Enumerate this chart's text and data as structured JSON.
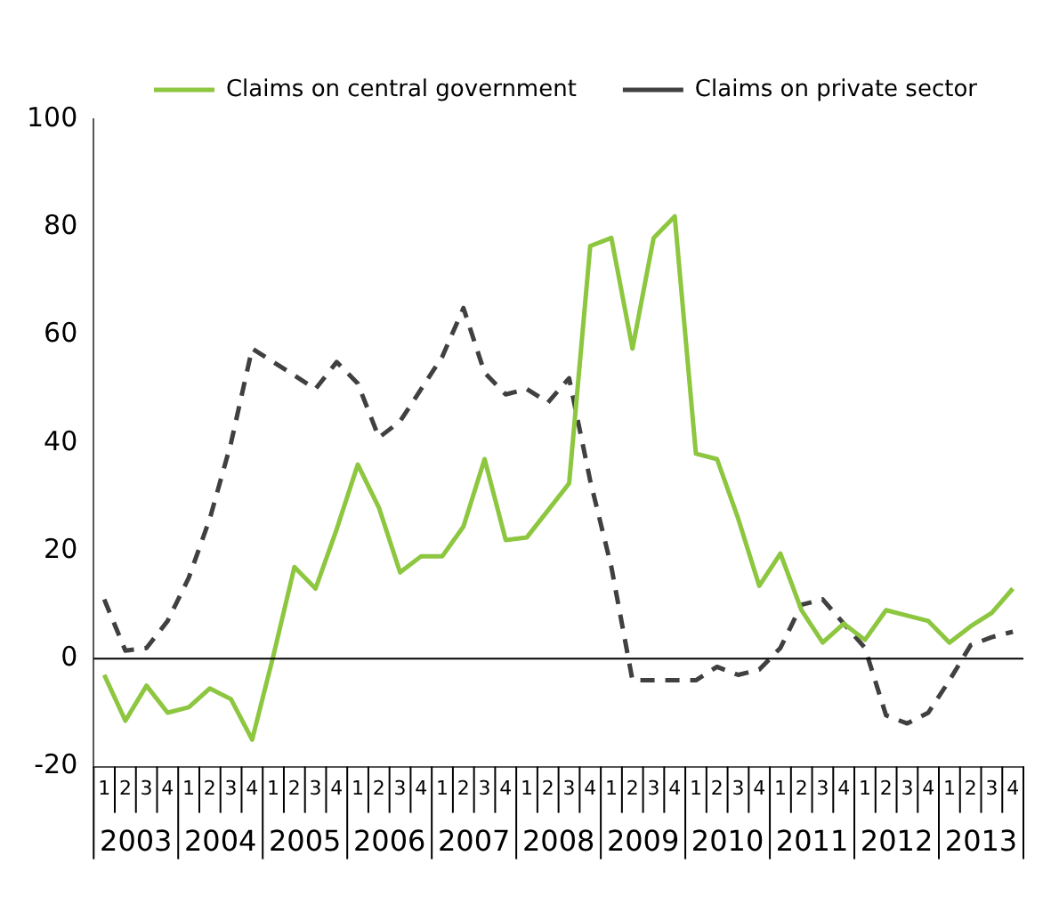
{
  "chart_data": {
    "type": "line",
    "categories": [
      "1",
      "2",
      "3",
      "4",
      "1",
      "2",
      "3",
      "4",
      "1",
      "2",
      "3",
      "4",
      "1",
      "2",
      "3",
      "4",
      "1",
      "2",
      "3",
      "4",
      "1",
      "2",
      "3",
      "4",
      "1",
      "2",
      "3",
      "4",
      "1",
      "2",
      "3",
      "4",
      "1",
      "2",
      "3",
      "4",
      "1",
      "2",
      "3",
      "4",
      "1",
      "2",
      "3",
      "4"
    ],
    "series": [
      {
        "name": "Claims on central government",
        "color": "#8dc63f",
        "line_style": "solid",
        "values": [
          -3,
          -11.5,
          -5,
          -10,
          -9,
          -5.5,
          -7.5,
          -15,
          0.5,
          17,
          13,
          24,
          36,
          28,
          16,
          19,
          19,
          24.5,
          37,
          22,
          22.5,
          27.5,
          32.5,
          76.5,
          78,
          57.5,
          78,
          82,
          38,
          37,
          26,
          13.5,
          19.5,
          9,
          3,
          6.5,
          3.5,
          9,
          8,
          7,
          3,
          6,
          8.5,
          13
        ]
      },
      {
        "name": "Claims on private sector",
        "color": "#404040",
        "line_style": "dashed",
        "values": [
          11,
          1.5,
          2,
          7,
          15,
          26,
          40,
          57.5,
          55,
          52.5,
          50,
          55,
          51,
          41,
          44,
          50,
          56,
          65,
          53,
          49,
          50,
          47.5,
          52,
          33,
          17,
          -4,
          -4,
          -4,
          -4,
          -1.5,
          -3,
          -2,
          2,
          10,
          11,
          6.5,
          2,
          -10.5,
          -12,
          -10,
          -4,
          2.5,
          4,
          5
        ]
      }
    ],
    "annotations": [
      "2003",
      "2004",
      "2005",
      "2006",
      "2007",
      "2008",
      "2009",
      "2010",
      "2011",
      "2012",
      "2013"
    ],
    "ylim": [
      -20,
      100
    ],
    "yticks": [
      -20,
      0,
      20,
      40,
      60,
      80,
      100
    ],
    "ref_lines": [
      {
        "axis": "y",
        "value": 0
      }
    ],
    "grid": false,
    "legend": "top",
    "marker": "none"
  }
}
